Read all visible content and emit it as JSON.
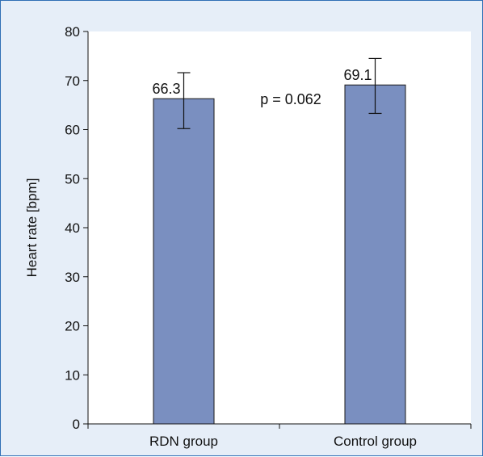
{
  "chart_data": {
    "type": "bar",
    "categories": [
      "RDN group",
      "Control group"
    ],
    "values": [
      66.3,
      69.1
    ],
    "error_bars": [
      {
        "low": 60.2,
        "high": 71.6
      },
      {
        "low": 63.3,
        "high": 74.5
      }
    ],
    "data_labels": [
      "66.3",
      "69.1"
    ],
    "ylabel": "Heart rate [bpm]",
    "xlabel": "",
    "ylim": [
      0,
      80
    ],
    "yticks": [
      0,
      10,
      20,
      30,
      40,
      50,
      60,
      70,
      80
    ],
    "annotation": "p = 0.062",
    "grid": false,
    "colors": {
      "bar_fill": "#7a8fc0",
      "bar_stroke": "#1a1a1a",
      "plot_bg": "#ffffff",
      "panel_bg": "#e6eef8",
      "panel_border": "#2f6fb5"
    }
  }
}
